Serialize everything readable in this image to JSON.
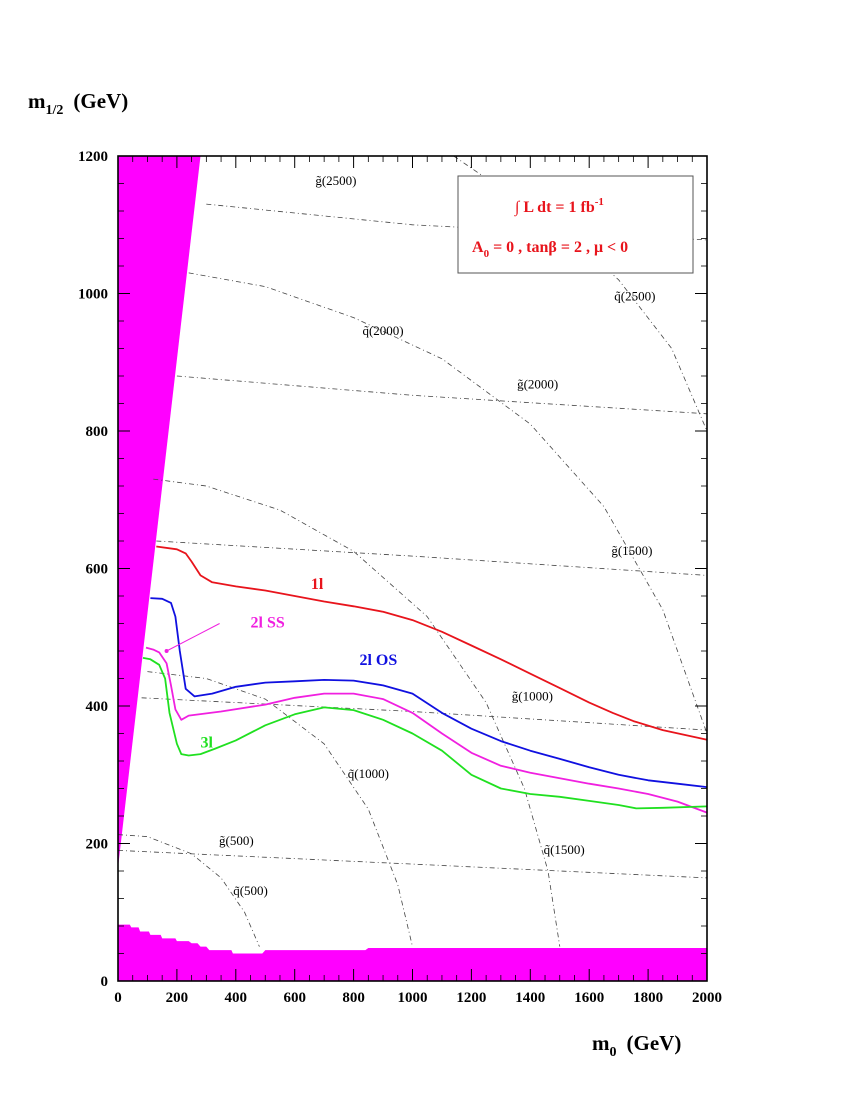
{
  "chart_data": {
    "type": "line",
    "xlabel": "m",
    "xlabel_sub": "0",
    "xlabel_unit": "(GeV)",
    "ylabel": "m",
    "ylabel_sub": "1/2",
    "ylabel_unit": "(GeV)",
    "xlim": [
      0,
      2000
    ],
    "ylim": [
      0,
      1200
    ],
    "xticks": [
      0,
      200,
      400,
      600,
      800,
      1000,
      1200,
      1400,
      1600,
      1800,
      2000
    ],
    "yticks": [
      0,
      200,
      400,
      600,
      800,
      1000,
      1200
    ],
    "xtick_labels": [
      "0",
      "200",
      "400",
      "600",
      "800",
      "1000",
      "1200",
      "1400",
      "1600",
      "1800",
      "2000"
    ],
    "ytick_labels": [
      "0",
      "200",
      "400",
      "600",
      "800",
      "1000",
      "1200"
    ],
    "grid": false,
    "legend_box": {
      "placement": "top-right",
      "line1": "∫ L dt = 1 fb",
      "line1_sup": "-1",
      "line2_a": "A",
      "line2_sub": "0",
      "line2_b": " = 0 ,  tanβ = 2 ,  μ < 0"
    },
    "series": [
      {
        "name": "1l",
        "color": "#e8141c",
        "points": [
          [
            130,
            632
          ],
          [
            200,
            628
          ],
          [
            230,
            622
          ],
          [
            250,
            610
          ],
          [
            280,
            590
          ],
          [
            320,
            580
          ],
          [
            400,
            574
          ],
          [
            500,
            568
          ],
          [
            600,
            560
          ],
          [
            700,
            552
          ],
          [
            800,
            545
          ],
          [
            900,
            537
          ],
          [
            1000,
            525
          ],
          [
            1100,
            508
          ],
          [
            1200,
            488
          ],
          [
            1300,
            468
          ],
          [
            1400,
            447
          ],
          [
            1500,
            426
          ],
          [
            1600,
            405
          ],
          [
            1680,
            390
          ],
          [
            1750,
            378
          ],
          [
            1850,
            365
          ],
          [
            2000,
            351
          ]
        ]
      },
      {
        "name": "2l OS",
        "color": "#1010e0",
        "points": [
          [
            110,
            557
          ],
          [
            150,
            556
          ],
          [
            180,
            550
          ],
          [
            195,
            530
          ],
          [
            210,
            480
          ],
          [
            230,
            425
          ],
          [
            260,
            414
          ],
          [
            320,
            418
          ],
          [
            400,
            428
          ],
          [
            500,
            434
          ],
          [
            600,
            436
          ],
          [
            700,
            438
          ],
          [
            800,
            437
          ],
          [
            900,
            430
          ],
          [
            1000,
            418
          ],
          [
            1100,
            390
          ],
          [
            1200,
            367
          ],
          [
            1300,
            349
          ],
          [
            1400,
            335
          ],
          [
            1500,
            323
          ],
          [
            1600,
            311
          ],
          [
            1700,
            300
          ],
          [
            1800,
            292
          ],
          [
            1900,
            287
          ],
          [
            2000,
            282
          ]
        ]
      },
      {
        "name": "2l SS",
        "color": "#f020e0",
        "points": [
          [
            95,
            485
          ],
          [
            120,
            482
          ],
          [
            140,
            478
          ],
          [
            165,
            462
          ],
          [
            180,
            430
          ],
          [
            195,
            395
          ],
          [
            215,
            380
          ],
          [
            240,
            386
          ],
          [
            350,
            392
          ],
          [
            500,
            402
          ],
          [
            600,
            412
          ],
          [
            700,
            418
          ],
          [
            800,
            418
          ],
          [
            900,
            410
          ],
          [
            1000,
            390
          ],
          [
            1100,
            360
          ],
          [
            1200,
            332
          ],
          [
            1300,
            313
          ],
          [
            1400,
            303
          ],
          [
            1500,
            295
          ],
          [
            1600,
            287
          ],
          [
            1700,
            280
          ],
          [
            1800,
            272
          ],
          [
            1900,
            261
          ],
          [
            2000,
            245
          ]
        ]
      },
      {
        "name": "3l",
        "color": "#20e020",
        "points": [
          [
            85,
            470
          ],
          [
            110,
            468
          ],
          [
            140,
            460
          ],
          [
            160,
            440
          ],
          [
            175,
            390
          ],
          [
            200,
            345
          ],
          [
            215,
            330
          ],
          [
            240,
            328
          ],
          [
            280,
            330
          ],
          [
            330,
            338
          ],
          [
            400,
            350
          ],
          [
            500,
            372
          ],
          [
            600,
            388
          ],
          [
            700,
            398
          ],
          [
            800,
            394
          ],
          [
            900,
            380
          ],
          [
            1000,
            360
          ],
          [
            1100,
            335
          ],
          [
            1200,
            300
          ],
          [
            1300,
            280
          ],
          [
            1400,
            272
          ],
          [
            1500,
            268
          ],
          [
            1600,
            262
          ],
          [
            1700,
            256
          ],
          [
            1760,
            251
          ],
          [
            1850,
            252
          ],
          [
            2000,
            254
          ]
        ]
      }
    ],
    "annotations": {
      "gluino_iso": [
        {
          "label": "g̃(2500)",
          "points": [
            [
              300,
              1130
            ],
            [
              1000,
              1100
            ],
            [
              2000,
              1078
            ]
          ]
        },
        {
          "label": "g̃(2000)",
          "points": [
            [
              200,
              880
            ],
            [
              1000,
              852
            ],
            [
              2000,
              825
            ]
          ]
        },
        {
          "label": "g̃(1500)",
          "points": [
            [
              130,
              640
            ],
            [
              1000,
              618
            ],
            [
              2000,
              590
            ]
          ]
        },
        {
          "label": "g̃(1000)",
          "points": [
            [
              80,
              412
            ],
            [
              1000,
              392
            ],
            [
              2000,
              365
            ]
          ]
        },
        {
          "label": "g̃(500)",
          "points": [
            [
              0,
              190
            ],
            [
              1000,
              170
            ],
            [
              2000,
              150
            ]
          ]
        }
      ],
      "squark_iso": [
        {
          "label": "q̃(2500)",
          "points": [
            [
              1140,
              1200
            ],
            [
              1310,
              1150
            ],
            [
              1520,
              1090
            ],
            [
              1700,
              1020
            ],
            [
              1880,
              920
            ],
            [
              2000,
              800
            ]
          ]
        },
        {
          "label": "q̃(2000)",
          "points": [
            [
              240,
              1030
            ],
            [
              500,
              1010
            ],
            [
              800,
              965
            ],
            [
              1100,
              905
            ],
            [
              1400,
              810
            ],
            [
              1650,
              690
            ],
            [
              1850,
              540
            ],
            [
              2000,
              360
            ]
          ]
        },
        {
          "label": "q̃(1500)",
          "points": [
            [
              120,
              730
            ],
            [
              300,
              720
            ],
            [
              550,
              685
            ],
            [
              800,
              625
            ],
            [
              1050,
              530
            ],
            [
              1250,
              405
            ],
            [
              1380,
              280
            ],
            [
              1460,
              160
            ],
            [
              1500,
              50
            ]
          ]
        },
        {
          "label": "q̃(1000)",
          "points": [
            [
              100,
              450
            ],
            [
              300,
              440
            ],
            [
              500,
              410
            ],
            [
              700,
              345
            ],
            [
              850,
              250
            ],
            [
              950,
              140
            ],
            [
              1000,
              50
            ]
          ]
        },
        {
          "label": "q̃(500)",
          "points": [
            [
              0,
              213
            ],
            [
              100,
              210
            ],
            [
              250,
              185
            ],
            [
              350,
              150
            ],
            [
              430,
              100
            ],
            [
              480,
              50
            ]
          ]
        }
      ],
      "labels": [
        {
          "text": "g̃(2500)",
          "x": 740,
          "y": 1158
        },
        {
          "text": "g̃(2000)",
          "x": 1425,
          "y": 862
        },
        {
          "text": "g̃(1500)",
          "x": 1745,
          "y": 620
        },
        {
          "text": "g̃(1000)",
          "x": 1407,
          "y": 408
        },
        {
          "text": "g̃(500)",
          "x": 402,
          "y": 198
        },
        {
          "text": "q̃(2500)",
          "x": 1755,
          "y": 990
        },
        {
          "text": "q̃(2000)",
          "x": 900,
          "y": 940
        },
        {
          "text": "q̃(1500)",
          "x": 1515,
          "y": 185
        },
        {
          "text": "q̃(1000)",
          "x": 850,
          "y": 295
        },
        {
          "text": "q̃(500)",
          "x": 450,
          "y": 125
        }
      ]
    },
    "excluded_regions": [
      {
        "name": "theory-excluded-wedge",
        "color": "#ff00ff",
        "points": [
          [
            0,
            1200
          ],
          [
            280,
            1200
          ],
          [
            0,
            165
          ]
        ]
      },
      {
        "name": "lep-excluded-band",
        "color": "#ff00ff",
        "points": [
          [
            0,
            0
          ],
          [
            2000,
            0
          ],
          [
            2000,
            48
          ],
          [
            850,
            48
          ],
          [
            840,
            45
          ],
          [
            500,
            45
          ],
          [
            490,
            40
          ],
          [
            390,
            40
          ],
          [
            385,
            45
          ],
          [
            310,
            45
          ],
          [
            300,
            50
          ],
          [
            280,
            50
          ],
          [
            270,
            55
          ],
          [
            250,
            55
          ],
          [
            240,
            58
          ],
          [
            200,
            58
          ],
          [
            195,
            62
          ],
          [
            150,
            62
          ],
          [
            145,
            67
          ],
          [
            110,
            67
          ],
          [
            105,
            72
          ],
          [
            75,
            72
          ],
          [
            70,
            78
          ],
          [
            45,
            78
          ],
          [
            40,
            82
          ],
          [
            0,
            82
          ]
        ]
      }
    ],
    "series_labels": [
      {
        "text": "1l",
        "x": 655,
        "y": 570,
        "color": "#e8141c"
      },
      {
        "text": "2l OS",
        "x": 820,
        "y": 460,
        "color": "#1010e0"
      },
      {
        "text": "2l SS",
        "x": 450,
        "y": 514,
        "color": "#f020e0"
      },
      {
        "text": "3l",
        "x": 280,
        "y": 340,
        "color": "#20e020"
      }
    ],
    "pointer_2lss": {
      "from": [
        345,
        520
      ],
      "to": [
        165,
        480
      ]
    }
  }
}
